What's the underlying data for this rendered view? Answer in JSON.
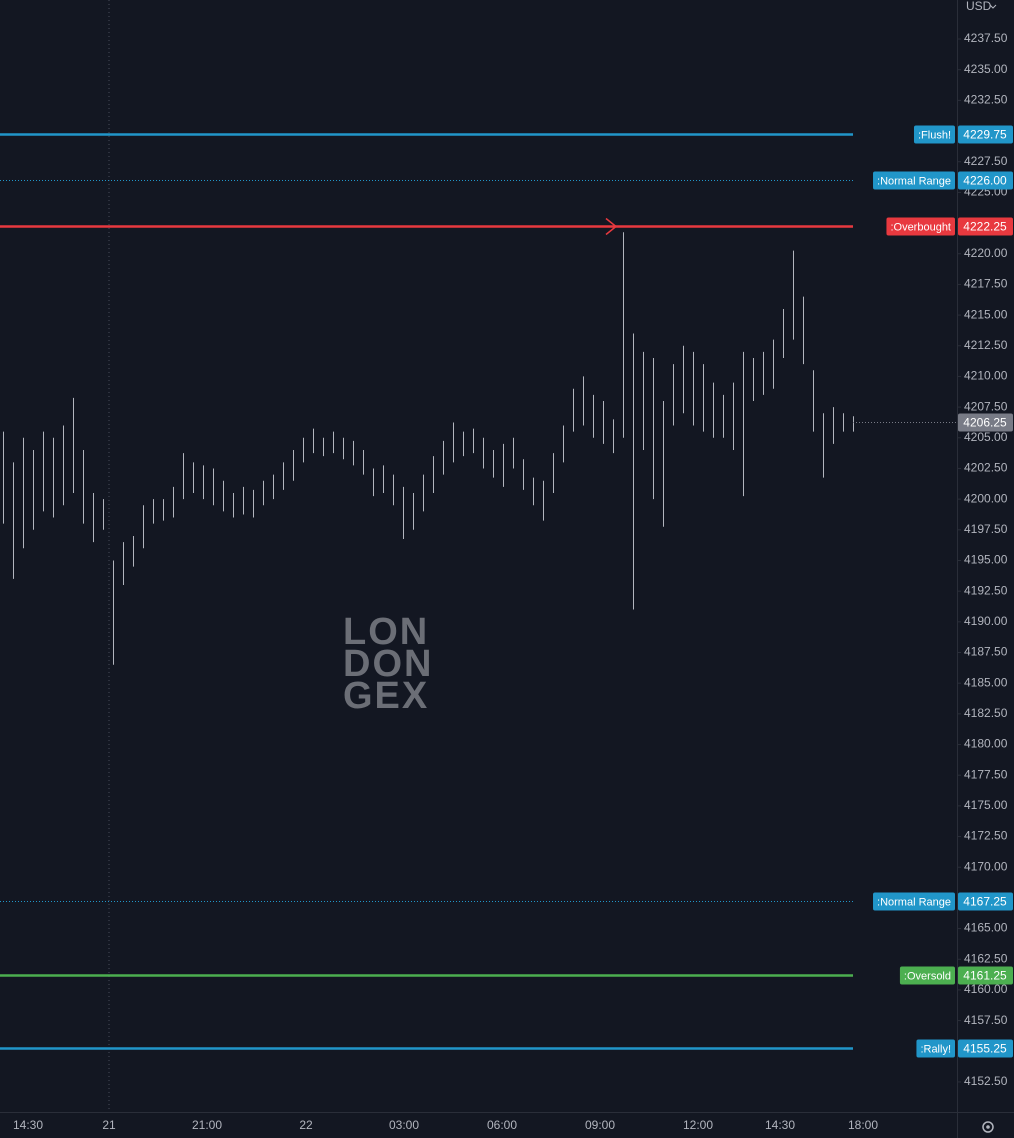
{
  "chart_data": {
    "type": "range-bar",
    "currency": "USD",
    "watermark": [
      "LON",
      "DON",
      "GEX"
    ],
    "ylim": [
      4150.05,
      4240.68
    ],
    "yticks": [
      {
        "value": 4152.5,
        "label": "4152.50"
      },
      {
        "value": 4157.5,
        "label": "4157.50"
      },
      {
        "value": 4160,
        "label": "4160.00"
      },
      {
        "value": 4162.5,
        "label": "4162.50"
      },
      {
        "value": 4165,
        "label": "4165.00"
      },
      {
        "value": 4170,
        "label": "4170.00"
      },
      {
        "value": 4172.5,
        "label": "4172.50"
      },
      {
        "value": 4175,
        "label": "4175.00"
      },
      {
        "value": 4177.5,
        "label": "4177.50"
      },
      {
        "value": 4180,
        "label": "4180.00"
      },
      {
        "value": 4182.5,
        "label": "4182.50"
      },
      {
        "value": 4185,
        "label": "4185.00"
      },
      {
        "value": 4187.5,
        "label": "4187.50"
      },
      {
        "value": 4190,
        "label": "4190.00"
      },
      {
        "value": 4192.5,
        "label": "4192.50"
      },
      {
        "value": 4195,
        "label": "4195.00"
      },
      {
        "value": 4197.5,
        "label": "4197.50"
      },
      {
        "value": 4200,
        "label": "4200.00"
      },
      {
        "value": 4202.5,
        "label": "4202.50"
      },
      {
        "value": 4205,
        "label": "4205.00"
      },
      {
        "value": 4207.5,
        "label": "4207.50"
      },
      {
        "value": 4210,
        "label": "4210.00"
      },
      {
        "value": 4212.5,
        "label": "4212.50"
      },
      {
        "value": 4215,
        "label": "4215.00"
      },
      {
        "value": 4217.5,
        "label": "4217.50"
      },
      {
        "value": 4220,
        "label": "4220.00"
      },
      {
        "value": 4225,
        "label": "4225.00"
      },
      {
        "value": 4227.5,
        "label": "4227.50"
      },
      {
        "value": 4232.5,
        "label": "4232.50"
      },
      {
        "value": 4235,
        "label": "4235.00"
      },
      {
        "value": 4237.5,
        "label": "4237.50"
      }
    ],
    "time_labels": [
      "14:30",
      "21",
      "21:00",
      "22",
      "03:00",
      "06:00",
      "09:00",
      "12:00",
      "14:30",
      "18:00"
    ],
    "bars": {
      "color": "#b2b5be",
      "high": [
        4205.5,
        4203,
        4205,
        4204,
        4205.5,
        4205,
        4206,
        4208.25,
        4204,
        4200.5,
        4200,
        4195,
        4196.5,
        4197,
        4199.5,
        4200,
        4200,
        4201,
        4203.75,
        4203,
        4202.75,
        4202.5,
        4201.5,
        4200.5,
        4201,
        4200.75,
        4201.5,
        4202,
        4203,
        4204,
        4205,
        4205.75,
        4205,
        4205.5,
        4205,
        4204.75,
        4204,
        4202.5,
        4202.75,
        4202,
        4201,
        4200.5,
        4202,
        4203.5,
        4204.75,
        4206.25,
        4205.5,
        4205.75,
        4205,
        4204,
        4204.5,
        4205,
        4203.25,
        4201.75,
        4201.5,
        4203.75,
        4206,
        4209,
        4210,
        4208.5,
        4208,
        4206.5,
        4221.75,
        4213.5,
        4212,
        4211.5,
        4208,
        4211,
        4212.5,
        4212,
        4211,
        4209.5,
        4208.5,
        4209.5,
        4212,
        4211.5,
        4212,
        4213,
        4215.5,
        4220.25,
        4216.5,
        4210.5,
        4207,
        4207.5,
        4207,
        4206.75
      ],
      "low": [
        4198,
        4193.5,
        4196,
        4197.5,
        4199,
        4198.5,
        4199.5,
        4200.5,
        4198,
        4196.5,
        4197.5,
        4186.5,
        4193,
        4194.5,
        4196,
        4198,
        4198.25,
        4198.5,
        4200,
        4200.5,
        4200,
        4199.5,
        4199,
        4198.5,
        4198.75,
        4198.5,
        4199.5,
        4200,
        4200.75,
        4201.5,
        4203,
        4203.75,
        4203.5,
        4203.75,
        4203.25,
        4202.75,
        4202,
        4200.25,
        4200.5,
        4199.5,
        4196.75,
        4197.5,
        4199,
        4200.5,
        4202,
        4203,
        4203.5,
        4203.75,
        4202.5,
        4201.75,
        4201,
        4202.5,
        4200.75,
        4199.5,
        4198.25,
        4200.5,
        4203,
        4205.5,
        4206,
        4205,
        4204.5,
        4203.75,
        4205,
        4191,
        4204,
        4200,
        4197.75,
        4206,
        4207,
        4206,
        4205.5,
        4205,
        4205,
        4204,
        4200.25,
        4208,
        4208.5,
        4209,
        4211.5,
        4213,
        4211,
        4205.5,
        4201.75,
        4204.5,
        4205.5,
        4205.5
      ]
    },
    "last_price": 4206.25,
    "levels": [
      {
        "name": ":Flush!",
        "value": 4229.75,
        "value_label": "4229.75",
        "color": "#2196c9",
        "style": "solid"
      },
      {
        "name": ":Normal Range",
        "value": 4226,
        "value_label": "4226.00",
        "color": "#2196c9",
        "style": "dotted"
      },
      {
        "name": ":Overbought",
        "value": 4222.25,
        "value_label": "4222.25",
        "color": "#e8393f",
        "style": "solid"
      },
      {
        "name": ":Normal Range",
        "value": 4167.25,
        "value_label": "4167.25",
        "color": "#2196c9",
        "style": "dotted"
      },
      {
        "name": ":Oversold",
        "value": 4161.25,
        "value_label": "4161.25",
        "color": "#4caf50",
        "style": "solid"
      },
      {
        "name": ":Rally!",
        "value": 4155.25,
        "value_label": "4155.25",
        "color": "#2196c9",
        "style": "solid"
      }
    ]
  }
}
